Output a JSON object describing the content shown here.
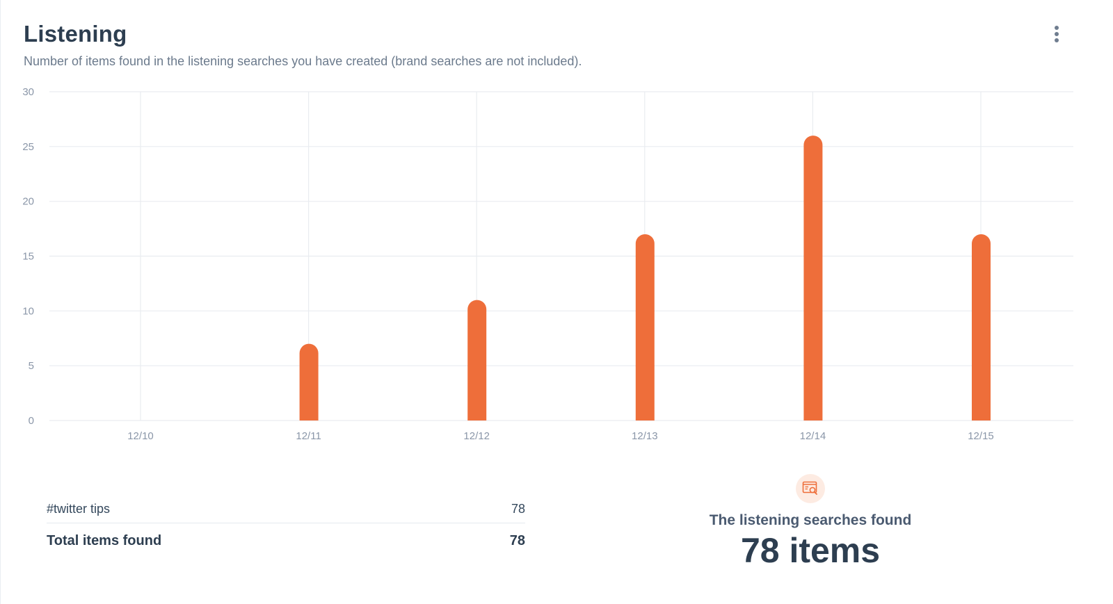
{
  "header": {
    "title": "Listening",
    "subtitle": "Number of items found in the listening searches you have created (brand searches are not included)."
  },
  "icons": {
    "menu": "more-vertical-icon",
    "summary": "search-window-icon"
  },
  "colors": {
    "bar": "#EE6E3A",
    "grid": "#E9ECF0",
    "tick": "#8A96A8",
    "icon_bg": "#FDEBE2"
  },
  "chart_data": {
    "type": "bar",
    "categories": [
      "12/10",
      "12/11",
      "12/12",
      "12/13",
      "12/14",
      "12/15"
    ],
    "values": [
      0,
      7,
      11,
      17,
      26,
      17
    ],
    "ylim": [
      0,
      30
    ],
    "yticks": [
      0,
      5,
      10,
      15,
      20,
      25,
      30
    ],
    "grid": true,
    "title": "",
    "xlabel": "",
    "ylabel": ""
  },
  "breakdown": {
    "items": [
      {
        "label": "#twitter tips",
        "value": "78"
      }
    ],
    "total_label": "Total items found",
    "total_value": "78"
  },
  "summary": {
    "label": "The listening searches found",
    "value": "78 items"
  }
}
